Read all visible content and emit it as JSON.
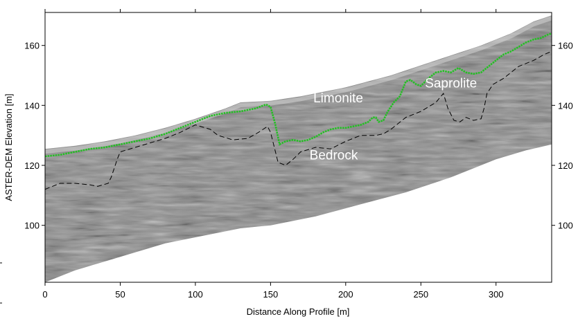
{
  "chart_data": {
    "type": "line",
    "title": "",
    "xlabel": "Distance Along Profile [m]",
    "ylabel": "ASTER-DEM Elevation [m]",
    "xlim": [
      0,
      337
    ],
    "ylim": [
      81,
      171
    ],
    "x_ticks": [
      0,
      50,
      100,
      150,
      200,
      250,
      300
    ],
    "y_ticks": [
      100,
      120,
      140,
      160
    ],
    "grid": false,
    "background": "grayscale GPR radargram image",
    "series": [
      {
        "style": "dotted",
        "color": "#22c022",
        "points": [
          [
            0,
            123
          ],
          [
            10,
            123.5
          ],
          [
            20,
            124.5
          ],
          [
            30,
            125.5
          ],
          [
            40,
            126
          ],
          [
            50,
            127
          ],
          [
            60,
            128
          ],
          [
            70,
            129
          ],
          [
            80,
            130.5
          ],
          [
            90,
            132.5
          ],
          [
            100,
            134.5
          ],
          [
            110,
            136.5
          ],
          [
            120,
            137.5
          ],
          [
            130,
            138
          ],
          [
            140,
            139
          ],
          [
            147,
            140.3
          ],
          [
            150,
            139.5
          ],
          [
            153,
            134
          ],
          [
            156,
            127
          ],
          [
            160,
            128
          ],
          [
            165,
            128.5
          ],
          [
            170,
            128
          ],
          [
            175,
            128.5
          ],
          [
            180,
            129.5
          ],
          [
            185,
            131
          ],
          [
            190,
            132
          ],
          [
            195,
            132.5
          ],
          [
            200,
            132.5
          ],
          [
            205,
            133
          ],
          [
            210,
            133.5
          ],
          [
            215,
            134.5
          ],
          [
            218,
            136
          ],
          [
            220,
            136
          ],
          [
            222,
            134.5
          ],
          [
            225,
            135
          ],
          [
            228,
            138
          ],
          [
            232,
            141
          ],
          [
            236,
            143
          ],
          [
            240,
            148
          ],
          [
            243,
            148.5
          ],
          [
            247,
            147
          ],
          [
            250,
            146.5
          ],
          [
            255,
            149
          ],
          [
            260,
            151
          ],
          [
            265,
            151.5
          ],
          [
            270,
            151
          ],
          [
            275,
            152.5
          ],
          [
            280,
            151
          ],
          [
            285,
            150.5
          ],
          [
            290,
            151
          ],
          [
            295,
            153
          ],
          [
            300,
            155
          ],
          [
            305,
            157
          ],
          [
            310,
            158
          ],
          [
            315,
            159.5
          ],
          [
            320,
            161
          ],
          [
            325,
            162
          ],
          [
            330,
            162.5
          ],
          [
            334,
            163.5
          ],
          [
            337,
            164
          ]
        ]
      },
      {
        "style": "dashed",
        "color": "#000000",
        "points": [
          [
            0,
            112
          ],
          [
            5,
            113
          ],
          [
            10,
            114
          ],
          [
            20,
            114
          ],
          [
            30,
            113.5
          ],
          [
            35,
            113
          ],
          [
            42,
            114
          ],
          [
            44,
            116
          ],
          [
            46,
            119
          ],
          [
            48,
            122
          ],
          [
            50,
            124.5
          ],
          [
            60,
            126
          ],
          [
            70,
            127.5
          ],
          [
            80,
            129
          ],
          [
            90,
            131
          ],
          [
            100,
            133.5
          ],
          [
            110,
            132
          ],
          [
            115,
            130
          ],
          [
            125,
            128.5
          ],
          [
            135,
            129
          ],
          [
            142,
            131
          ],
          [
            145,
            132
          ],
          [
            148,
            133
          ],
          [
            150,
            131
          ],
          [
            153,
            125
          ],
          [
            155,
            121
          ],
          [
            160,
            120
          ],
          [
            165,
            122
          ],
          [
            170,
            124.5
          ],
          [
            180,
            126
          ],
          [
            190,
            125.5
          ],
          [
            200,
            128
          ],
          [
            210,
            130
          ],
          [
            220,
            130
          ],
          [
            225,
            130.5
          ],
          [
            230,
            132
          ],
          [
            240,
            136
          ],
          [
            250,
            138
          ],
          [
            260,
            141
          ],
          [
            265,
            144
          ],
          [
            268,
            139
          ],
          [
            272,
            135
          ],
          [
            276,
            134.5
          ],
          [
            280,
            136
          ],
          [
            285,
            135
          ],
          [
            290,
            135.5
          ],
          [
            292,
            139
          ],
          [
            294,
            144
          ],
          [
            298,
            147
          ],
          [
            305,
            149
          ],
          [
            315,
            153
          ],
          [
            325,
            155
          ],
          [
            332,
            157
          ],
          [
            337,
            158
          ]
        ]
      }
    ],
    "annotations": [
      {
        "text": "Limonite",
        "x": 195,
        "y": 141
      },
      {
        "text": "Saprolite",
        "x": 270,
        "y": 146
      },
      {
        "text": "Bedrock",
        "x": 192,
        "y": 122
      }
    ],
    "surface": {
      "top": [
        [
          0,
          125.5
        ],
        [
          20,
          126.5
        ],
        [
          40,
          128
        ],
        [
          60,
          130
        ],
        [
          80,
          132.5
        ],
        [
          100,
          135.5
        ],
        [
          120,
          139
        ],
        [
          130,
          141
        ],
        [
          150,
          141.5
        ],
        [
          170,
          143
        ],
        [
          200,
          146
        ],
        [
          230,
          150
        ],
        [
          260,
          155
        ],
        [
          290,
          160
        ],
        [
          310,
          164
        ],
        [
          325,
          168
        ],
        [
          337,
          170
        ]
      ],
      "bottom": [
        [
          0,
          81
        ],
        [
          20,
          85
        ],
        [
          40,
          88
        ],
        [
          60,
          91
        ],
        [
          80,
          94
        ],
        [
          100,
          96
        ],
        [
          130,
          99
        ],
        [
          150,
          100
        ],
        [
          180,
          103
        ],
        [
          210,
          107
        ],
        [
          240,
          111
        ],
        [
          270,
          116
        ],
        [
          300,
          122
        ],
        [
          320,
          125
        ],
        [
          337,
          127
        ]
      ]
    }
  }
}
